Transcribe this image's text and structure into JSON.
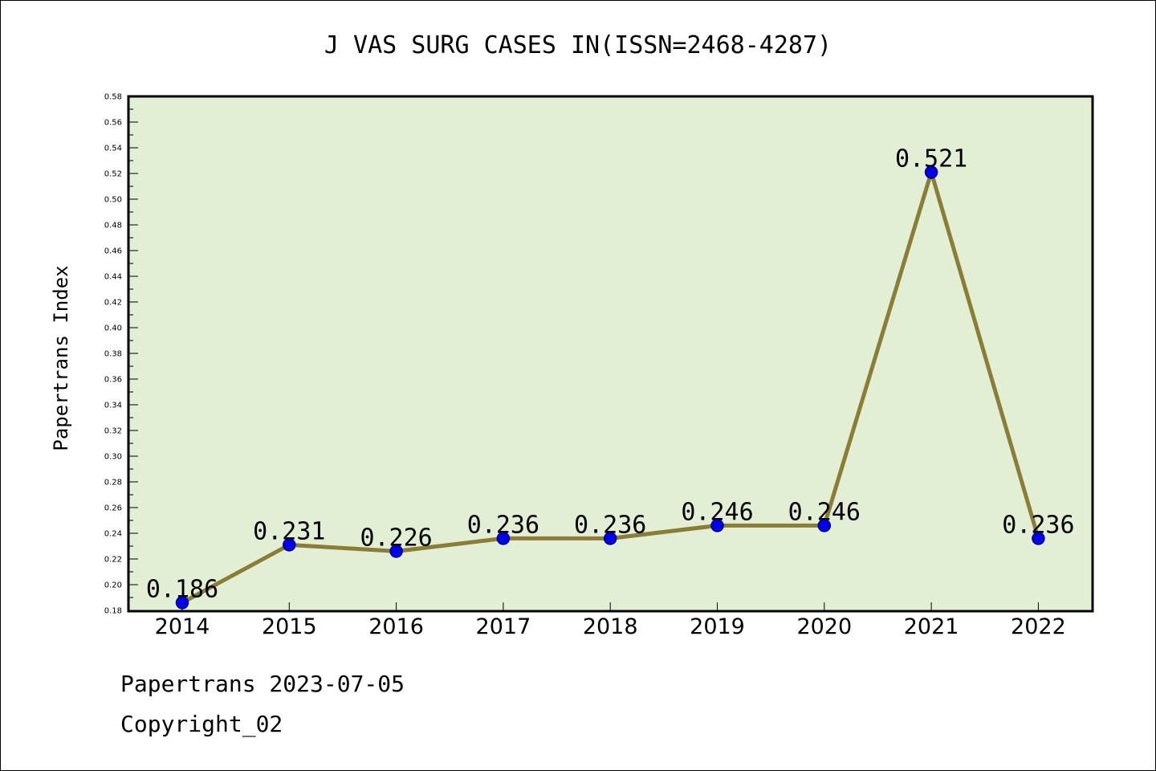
{
  "chart_data": {
    "type": "line",
    "title": "J VAS SURG CASES IN(ISSN=2468-4287)",
    "xlabel": "",
    "ylabel": "Papertrans Index",
    "categories": [
      "2014",
      "2015",
      "2016",
      "2017",
      "2018",
      "2019",
      "2020",
      "2021",
      "2022"
    ],
    "series": [
      {
        "values": [
          0.186,
          0.231,
          0.226,
          0.236,
          0.236,
          0.246,
          0.246,
          0.521,
          0.236
        ],
        "data_labels": [
          "0.186",
          "0.231",
          "0.226",
          "0.236",
          "0.236",
          "0.246",
          "0.246",
          "0.521",
          "0.236"
        ]
      }
    ],
    "ylim": [
      0.18,
      0.58
    ],
    "yticks": [
      "0.18",
      "0.20",
      "0.22",
      "0.24",
      "0.26",
      "0.28",
      "0.30",
      "0.32",
      "0.34",
      "0.36",
      "0.38",
      "0.40",
      "0.42",
      "0.44",
      "0.46",
      "0.48",
      "0.50",
      "0.52",
      "0.54",
      "0.56",
      "0.58"
    ],
    "grid": false,
    "legend": "none",
    "colors": {
      "plot_background": "#e2efd4",
      "line": "#8b7d35",
      "marker": "#0000ee",
      "marker_edge": "#000080"
    }
  },
  "footer": {
    "line1": "Papertrans 2023-07-05",
    "line2": "Copyright_02"
  }
}
